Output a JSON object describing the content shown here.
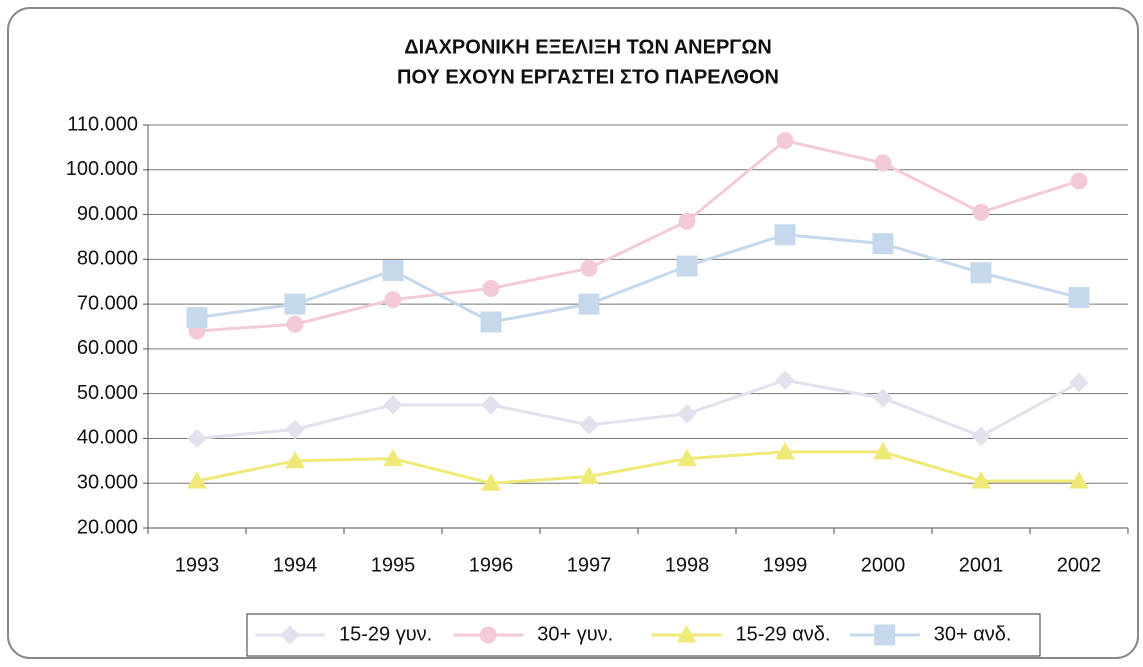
{
  "chart_data": {
    "type": "line",
    "title": [
      "ΔΙΑΧΡΟΝΙΚΗ ΕΞΕΛΙΞΗ ΤΩΝ ΑΝΕΡΓΩΝ",
      "ΠΟΥ ΕΧΟΥΝ ΕΡΓΑΣΤΕΙ ΣΤΟ ΠΑΡΕΛΘΟΝ"
    ],
    "categories": [
      "1993",
      "1994",
      "1995",
      "1996",
      "1997",
      "1998",
      "1999",
      "2000",
      "2001",
      "2002"
    ],
    "series": [
      {
        "name": "15-29 γυν.",
        "color": "#e4e0ee",
        "marker": "diamond",
        "values": [
          40000,
          42000,
          47500,
          47500,
          43000,
          45500,
          53000,
          49000,
          40500,
          52500
        ]
      },
      {
        "name": "30+ γυν.",
        "color": "#f3cbd6",
        "marker": "circle",
        "values": [
          64000,
          65500,
          71000,
          73500,
          78000,
          88500,
          106500,
          101500,
          90500,
          97500
        ]
      },
      {
        "name": "15-29 ανδ.",
        "color": "#efe978",
        "marker": "triangle",
        "values": [
          30500,
          35000,
          35500,
          30000,
          31500,
          35500,
          37000,
          37000,
          30500,
          30500
        ]
      },
      {
        "name": "30+ ανδ.",
        "color": "#c6d9ec",
        "marker": "square",
        "values": [
          67000,
          70000,
          77500,
          66000,
          70000,
          78500,
          85500,
          83500,
          77000,
          71500
        ]
      }
    ],
    "ylim": [
      20000,
      110000
    ],
    "yticks": [
      {
        "value": 20000,
        "label": "20.000"
      },
      {
        "value": 30000,
        "label": "30.000"
      },
      {
        "value": 40000,
        "label": "40.000"
      },
      {
        "value": 50000,
        "label": "50.000"
      },
      {
        "value": 60000,
        "label": "60.000"
      },
      {
        "value": 70000,
        "label": "70.000"
      },
      {
        "value": 80000,
        "label": "80.000"
      },
      {
        "value": 90000,
        "label": "90.000"
      },
      {
        "value": 100000,
        "label": "100.000"
      },
      {
        "value": 110000,
        "label": "110.000"
      }
    ],
    "grid": true,
    "legend": "bottom"
  }
}
